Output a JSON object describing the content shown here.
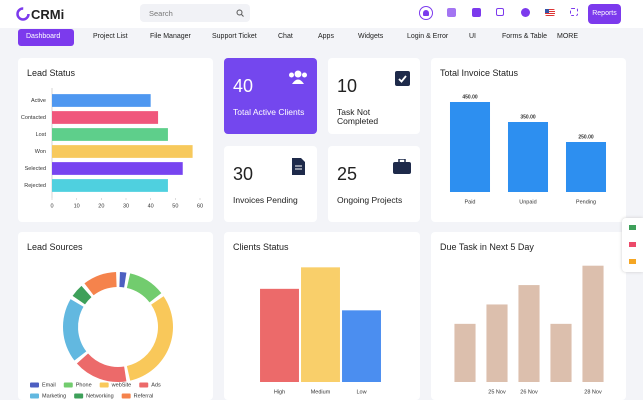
{
  "header": {
    "logo": "CRMi",
    "search_placeholder": "Search",
    "button": "Reports"
  },
  "nav": [
    "Dashboard",
    "Project List",
    "File Manager",
    "Support Ticket",
    "Chat",
    "Apps",
    "Widgets",
    "Login & Error",
    "UI",
    "Forms & Table",
    "MORE"
  ],
  "stats": [
    {
      "value": "40",
      "label": "Total Active Clients"
    },
    {
      "value": "10",
      "label": "Task Not Completed"
    },
    {
      "value": "30",
      "label": "Invoices Pending"
    },
    {
      "value": "25",
      "label": "Ongoing Projects"
    }
  ],
  "chart_data": [
    {
      "type": "bar",
      "horizontal": true,
      "title": "Lead Status",
      "categories": [
        "Active",
        "Contacted",
        "Lost",
        "Won",
        "Selected",
        "Rejected"
      ],
      "values": [
        40,
        43,
        47,
        57,
        53,
        47
      ],
      "colors": [
        "#4e97f0",
        "#f0577c",
        "#5ecf8b",
        "#f7c95c",
        "#7744f0",
        "#4fd0df"
      ],
      "xlim": [
        0,
        60
      ],
      "xticks": [
        0,
        10,
        20,
        30,
        40,
        50,
        60
      ]
    },
    {
      "type": "pie",
      "donut": true,
      "title": "Lead Sources",
      "categories": [
        "Email",
        "Phone",
        "webSite",
        "Ads",
        "Marketing",
        "Networking",
        "Referral"
      ],
      "values": [
        3,
        12,
        32,
        17,
        20,
        5,
        11
      ],
      "colors": [
        "#4d5fc1",
        "#72cc6e",
        "#f9c85a",
        "#ec6a6a",
        "#62b8e0",
        "#3ea05a",
        "#f5834c"
      ]
    },
    {
      "type": "bar",
      "title": "Clients Status",
      "categories": [
        "High",
        "Medium",
        "Low"
      ],
      "values": [
        65,
        80,
        50
      ],
      "colors": [
        "#ec6a6a",
        "#f9cf6a",
        "#4b8ef0"
      ],
      "ylim": [
        0,
        90
      ]
    },
    {
      "type": "bar",
      "title": "Total Invoice Status",
      "categories": [
        "Paid",
        "Unpaid",
        "Pending"
      ],
      "values": [
        450,
        350,
        250
      ],
      "value_labels": [
        "450.00",
        "350.00",
        "250.00"
      ],
      "color": "#2d8ff0",
      "ylim": [
        0,
        500
      ]
    },
    {
      "type": "bar",
      "title": "Due Task in Next 5 Day",
      "categories": [
        null,
        "25 Nov",
        "26 Nov",
        null,
        "28 Nov"
      ],
      "values": [
        30,
        40,
        50,
        30,
        60
      ],
      "color": "#dcbfad",
      "ylim": [
        0,
        65
      ]
    }
  ]
}
